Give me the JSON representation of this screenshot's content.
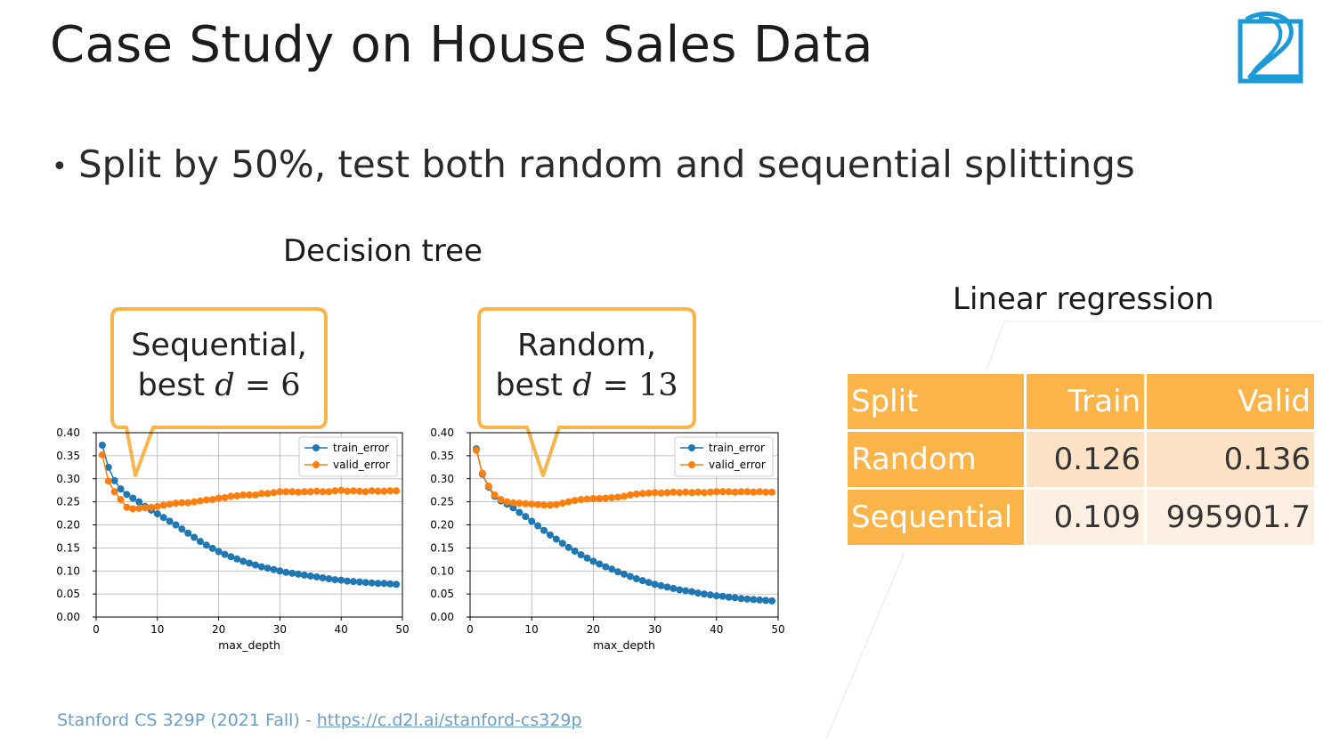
{
  "slide": {
    "title": "Case Study on House Sales Data",
    "bullet": "Split by 50%, test both random and sequential splittings",
    "decision_tree_label": "Decision tree",
    "linear_regression_label": "Linear regression",
    "footer_text": "Stanford CS 329P (2021 Fall) - ",
    "footer_link": "https://c.d2l.ai/stanford-cs329p"
  },
  "callouts": [
    {
      "line1": "Sequential,",
      "prefix": "best ",
      "var": "d",
      "eq": " = 6"
    },
    {
      "line1": "Random,",
      "prefix": "best ",
      "var": "d",
      "eq": " = 13"
    }
  ],
  "colors": {
    "accent": "#fbb44a",
    "train": "#1f77b4",
    "valid": "#ff7f0e",
    "footer": "#6a9fc8",
    "logo": "#1a9ad6"
  },
  "icons": {
    "logo": "d2l-logo-icon"
  },
  "table": {
    "headers": [
      "Split",
      "Train",
      "Valid"
    ],
    "rows": [
      {
        "split": "Random",
        "train": "0.126",
        "valid": "0.136"
      },
      {
        "split": "Sequential",
        "train": "0.109",
        "valid": "995901.7"
      }
    ]
  },
  "chart_data": [
    {
      "type": "line",
      "xlabel": "max_depth",
      "ylabel": "",
      "xlim": [
        0,
        50
      ],
      "ylim": [
        0,
        0.4
      ],
      "xticks": [
        0,
        10,
        20,
        30,
        40,
        50
      ],
      "yticks": [
        "0.00",
        "0.05",
        "0.10",
        "0.15",
        "0.20",
        "0.25",
        "0.30",
        "0.35",
        "0.40"
      ],
      "grid": true,
      "legend": "top-right",
      "x": [
        1,
        2,
        3,
        4,
        5,
        6,
        7,
        8,
        9,
        10,
        11,
        12,
        13,
        14,
        15,
        16,
        17,
        18,
        19,
        20,
        21,
        22,
        23,
        24,
        25,
        26,
        27,
        28,
        29,
        30,
        31,
        32,
        33,
        34,
        35,
        36,
        37,
        38,
        39,
        40,
        41,
        42,
        43,
        44,
        45,
        46,
        47,
        48,
        49
      ],
      "series": [
        {
          "name": "train_error",
          "values": [
            0.373,
            0.325,
            0.296,
            0.278,
            0.266,
            0.258,
            0.25,
            0.24,
            0.232,
            0.224,
            0.216,
            0.208,
            0.2,
            0.191,
            0.182,
            0.173,
            0.164,
            0.156,
            0.149,
            0.142,
            0.136,
            0.131,
            0.126,
            0.121,
            0.117,
            0.113,
            0.109,
            0.106,
            0.103,
            0.1,
            0.097,
            0.095,
            0.093,
            0.091,
            0.089,
            0.087,
            0.085,
            0.083,
            0.081,
            0.08,
            0.078,
            0.077,
            0.076,
            0.075,
            0.074,
            0.073,
            0.073,
            0.072,
            0.071
          ]
        },
        {
          "name": "valid_error",
          "values": [
            0.352,
            0.295,
            0.272,
            0.255,
            0.238,
            0.235,
            0.236,
            0.237,
            0.238,
            0.24,
            0.243,
            0.245,
            0.247,
            0.248,
            0.248,
            0.25,
            0.252,
            0.254,
            0.255,
            0.258,
            0.259,
            0.262,
            0.263,
            0.265,
            0.265,
            0.265,
            0.268,
            0.268,
            0.27,
            0.272,
            0.272,
            0.272,
            0.271,
            0.272,
            0.272,
            0.273,
            0.272,
            0.272,
            0.274,
            0.275,
            0.273,
            0.274,
            0.273,
            0.272,
            0.274,
            0.273,
            0.273,
            0.274,
            0.274
          ]
        }
      ]
    },
    {
      "type": "line",
      "xlabel": "max_depth",
      "ylabel": "",
      "xlim": [
        0,
        50
      ],
      "ylim": [
        0,
        0.4
      ],
      "xticks": [
        0,
        10,
        20,
        30,
        40,
        50
      ],
      "yticks": [
        "0.00",
        "0.05",
        "0.10",
        "0.15",
        "0.20",
        "0.25",
        "0.30",
        "0.35",
        "0.40"
      ],
      "grid": true,
      "legend": "top-right",
      "x": [
        1,
        2,
        3,
        4,
        5,
        6,
        7,
        8,
        9,
        10,
        11,
        12,
        13,
        14,
        15,
        16,
        17,
        18,
        19,
        20,
        21,
        22,
        23,
        24,
        25,
        26,
        27,
        28,
        29,
        30,
        31,
        32,
        33,
        34,
        35,
        36,
        37,
        38,
        39,
        40,
        41,
        42,
        43,
        44,
        45,
        46,
        47,
        48,
        49
      ],
      "series": [
        {
          "name": "train_error",
          "values": [
            0.365,
            0.31,
            0.282,
            0.262,
            0.252,
            0.245,
            0.237,
            0.227,
            0.218,
            0.208,
            0.198,
            0.188,
            0.178,
            0.169,
            0.16,
            0.151,
            0.143,
            0.135,
            0.128,
            0.121,
            0.115,
            0.109,
            0.104,
            0.098,
            0.093,
            0.088,
            0.083,
            0.079,
            0.075,
            0.071,
            0.068,
            0.065,
            0.062,
            0.059,
            0.057,
            0.055,
            0.052,
            0.05,
            0.048,
            0.046,
            0.045,
            0.043,
            0.042,
            0.04,
            0.039,
            0.038,
            0.037,
            0.036,
            0.035
          ]
        },
        {
          "name": "valid_error",
          "values": [
            0.362,
            0.312,
            0.284,
            0.265,
            0.255,
            0.25,
            0.248,
            0.247,
            0.246,
            0.245,
            0.244,
            0.243,
            0.243,
            0.244,
            0.247,
            0.25,
            0.253,
            0.255,
            0.256,
            0.257,
            0.257,
            0.258,
            0.259,
            0.26,
            0.262,
            0.265,
            0.267,
            0.268,
            0.269,
            0.27,
            0.269,
            0.27,
            0.271,
            0.27,
            0.271,
            0.27,
            0.271,
            0.27,
            0.271,
            0.272,
            0.272,
            0.272,
            0.271,
            0.272,
            0.272,
            0.271,
            0.272,
            0.271,
            0.271
          ]
        }
      ]
    }
  ]
}
